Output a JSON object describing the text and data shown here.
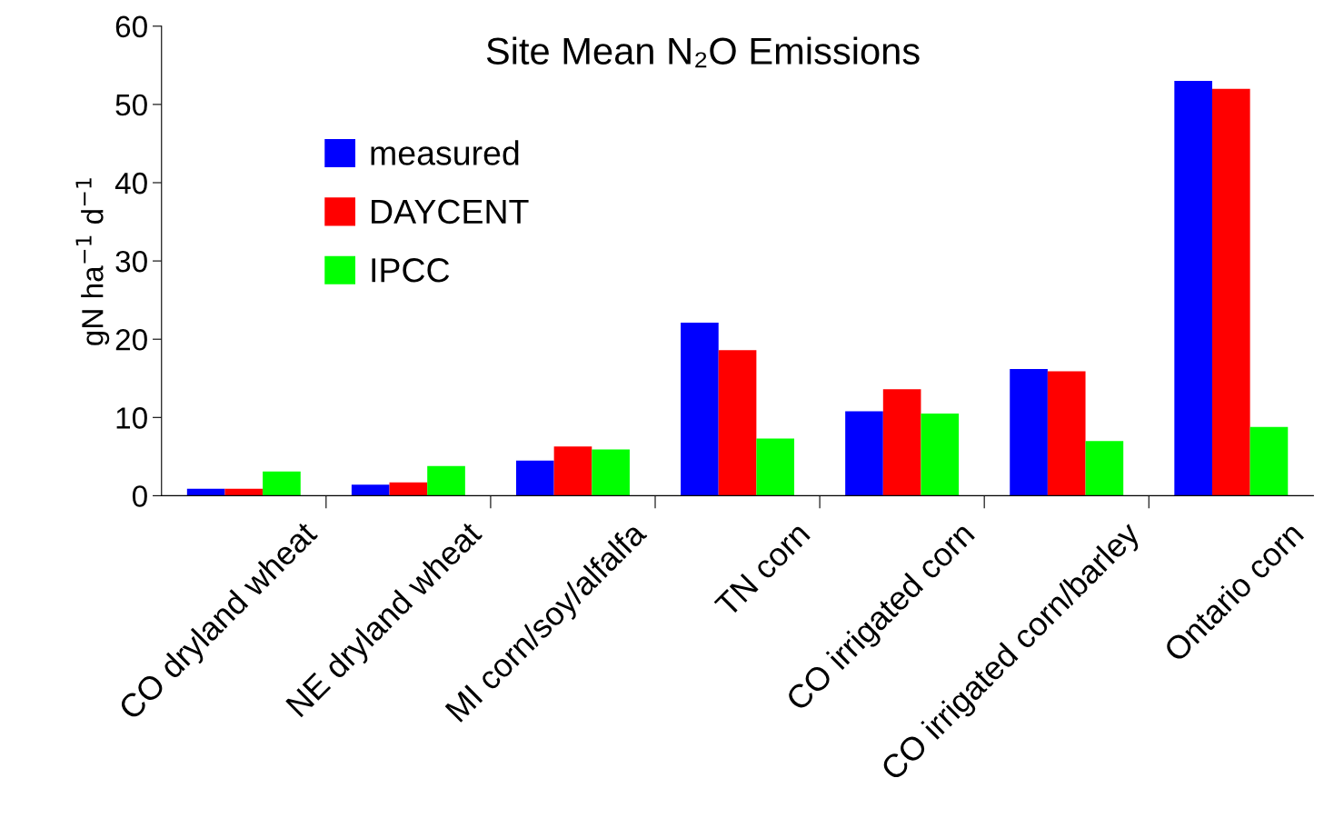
{
  "chart_data": {
    "type": "bar",
    "title": "Site Mean N₂O Emissions",
    "ylabel": "gN ha$^{−1}$ d$^{−1}$",
    "categories": [
      "CO dryland wheat",
      "NE dryland wheat",
      "MI corn/soy/alfalfa",
      "TN corn",
      "CO irrigated corn",
      "CO irrigated corn/barley",
      "Ontario corn"
    ],
    "series": [
      {
        "name": "measured",
        "color": "#0000ff",
        "values": [
          0.9,
          1.4,
          4.5,
          22.1,
          10.8,
          16.2,
          53.0
        ]
      },
      {
        "name": "DAYCENT",
        "color": "#ff0000",
        "values": [
          0.9,
          1.7,
          6.3,
          18.6,
          13.6,
          15.9,
          52.0
        ]
      },
      {
        "name": "IPCC",
        "color": "#00ff00",
        "values": [
          3.1,
          3.8,
          5.9,
          7.3,
          10.5,
          7.0,
          8.8
        ]
      }
    ],
    "ylim": [
      0,
      60
    ],
    "yticks": [
      0,
      10,
      20,
      30,
      40,
      50,
      60
    ],
    "grid": false,
    "legend": "left"
  }
}
